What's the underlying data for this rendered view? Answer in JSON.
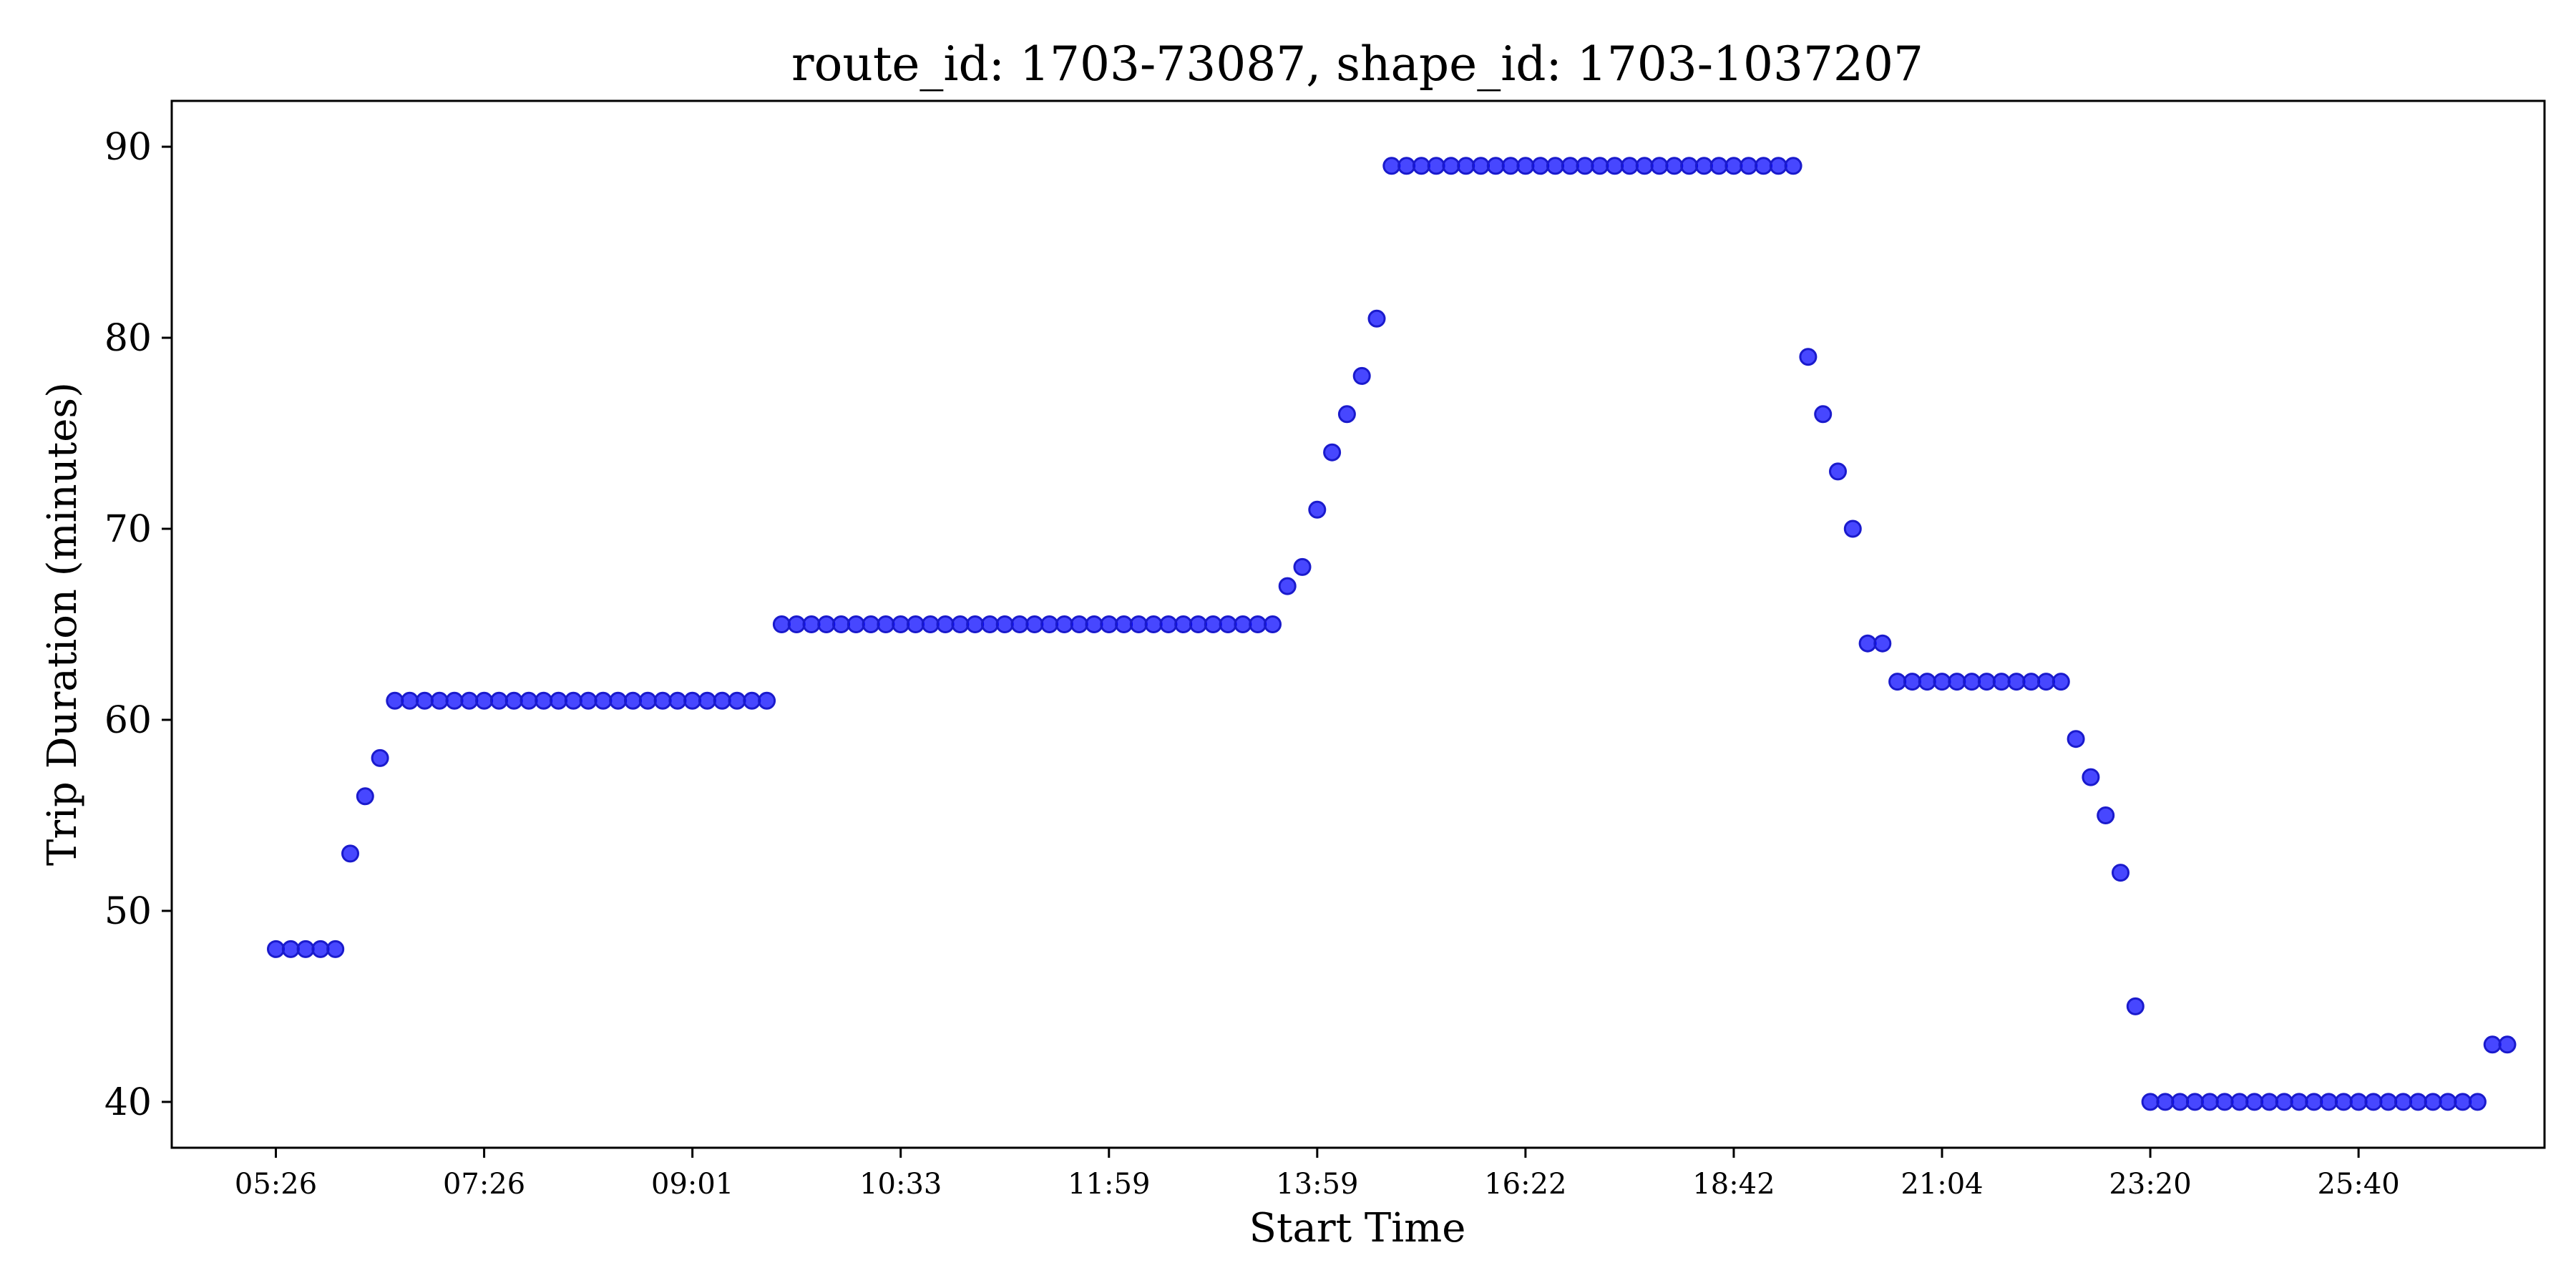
{
  "chart_data": {
    "type": "scatter",
    "title": "route_id: 1703-73087, shape_id: 1703-1037207",
    "xlabel": "Start Time",
    "ylabel": "Trip Duration (minutes)",
    "ylim": [
      37.6,
      92.4
    ],
    "xlim": [
      -7,
      152.5
    ],
    "grid": false,
    "marker_color": "#0000ff",
    "x_unit": "trip index (ordinal)",
    "y_ticks": [
      {
        "value": 40,
        "label": "40"
      },
      {
        "value": 50,
        "label": "50"
      },
      {
        "value": 60,
        "label": "60"
      },
      {
        "value": 70,
        "label": "70"
      },
      {
        "value": 80,
        "label": "80"
      },
      {
        "value": 90,
        "label": "90"
      }
    ],
    "x_ticks": [
      {
        "value": 0,
        "label": "05:26"
      },
      {
        "value": 14,
        "label": "07:26"
      },
      {
        "value": 28,
        "label": "09:01"
      },
      {
        "value": 42,
        "label": "10:33"
      },
      {
        "value": 56,
        "label": "11:59"
      },
      {
        "value": 70,
        "label": "13:59"
      },
      {
        "value": 84,
        "label": "16:22"
      },
      {
        "value": 98,
        "label": "18:42"
      },
      {
        "value": 112,
        "label": "21:04"
      },
      {
        "value": 126,
        "label": "23:20"
      },
      {
        "value": 140,
        "label": "25:40"
      }
    ],
    "y": [
      48,
      48,
      48,
      48,
      48,
      53,
      56,
      58,
      61,
      61,
      61,
      61,
      61,
      61,
      61,
      61,
      61,
      61,
      61,
      61,
      61,
      61,
      61,
      61,
      61,
      61,
      61,
      61,
      61,
      61,
      61,
      61,
      61,
      61,
      65,
      65,
      65,
      65,
      65,
      65,
      65,
      65,
      65,
      65,
      65,
      65,
      65,
      65,
      65,
      65,
      65,
      65,
      65,
      65,
      65,
      65,
      65,
      65,
      65,
      65,
      65,
      65,
      65,
      65,
      65,
      65,
      65,
      65,
      67,
      68,
      71,
      74,
      76,
      78,
      81,
      89,
      89,
      89,
      89,
      89,
      89,
      89,
      89,
      89,
      89,
      89,
      89,
      89,
      89,
      89,
      89,
      89,
      89,
      89,
      89,
      89,
      89,
      89,
      89,
      89,
      89,
      89,
      89,
      79,
      76,
      73,
      70,
      64,
      64,
      62,
      62,
      62,
      62,
      62,
      62,
      62,
      62,
      62,
      62,
      62,
      62,
      59,
      57,
      55,
      52,
      45,
      40,
      40,
      40,
      40,
      40,
      40,
      40,
      40,
      40,
      40,
      40,
      40,
      40,
      40,
      40,
      40,
      40,
      40,
      40,
      40,
      40,
      40,
      40,
      43,
      43
    ]
  }
}
